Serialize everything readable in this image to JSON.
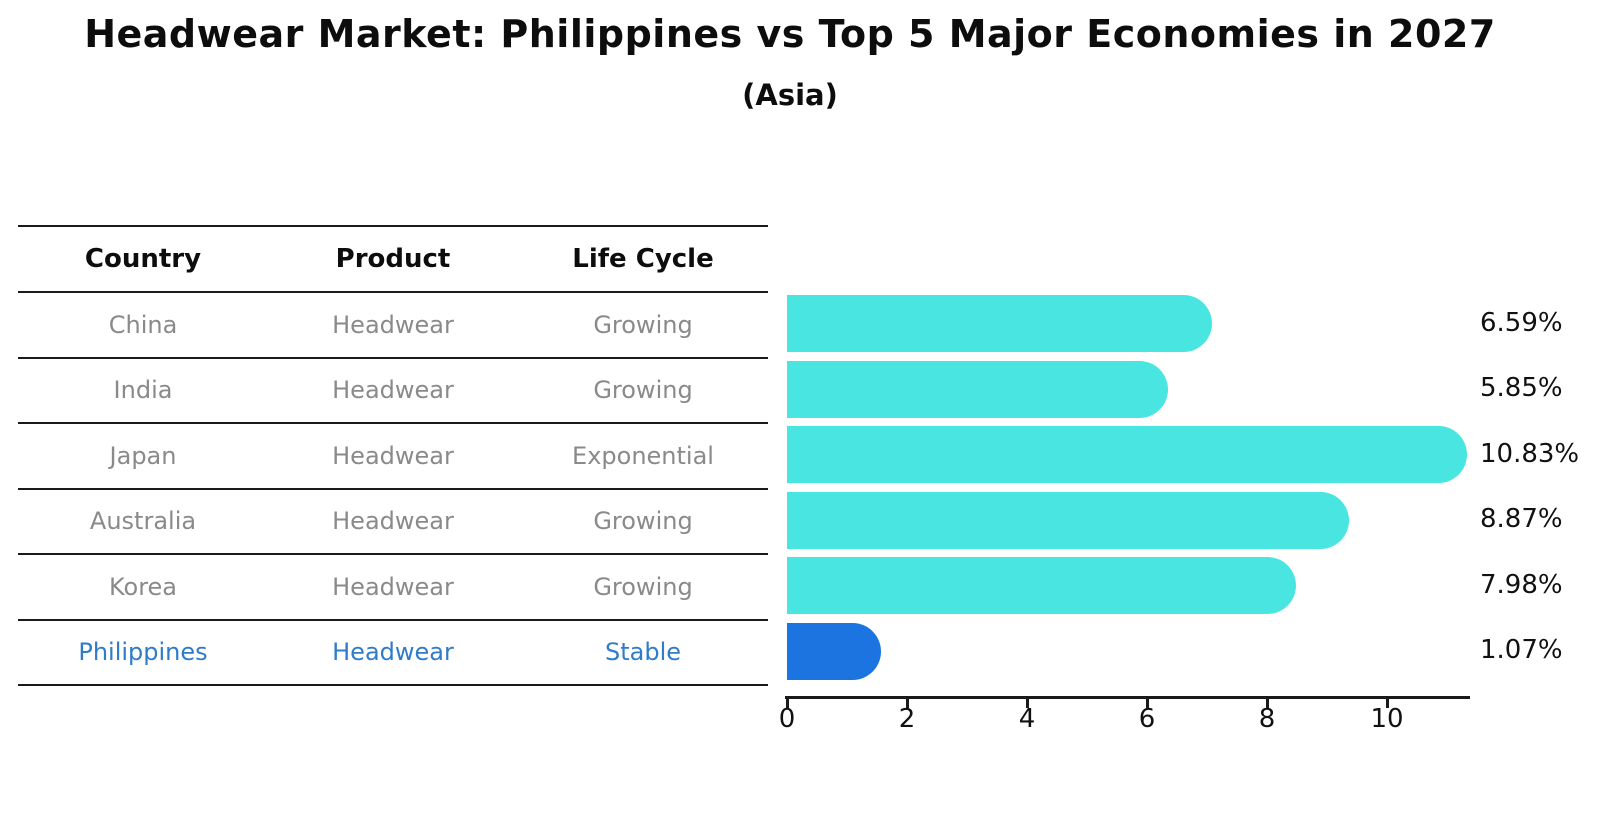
{
  "title": "Headwear Market: Philippines vs Top 5 Major Economies in 2027",
  "subtitle": "(Asia)",
  "table": {
    "headers": [
      "Country",
      "Product",
      "Life Cycle"
    ],
    "rows": [
      {
        "country": "China",
        "product": "Headwear",
        "life_cycle": "Growing",
        "highlight": false
      },
      {
        "country": "India",
        "product": "Headwear",
        "life_cycle": "Growing",
        "highlight": false
      },
      {
        "country": "Japan",
        "product": "Headwear",
        "life_cycle": "Exponential",
        "highlight": false
      },
      {
        "country": "Australia",
        "product": "Headwear",
        "life_cycle": "Growing",
        "highlight": false
      },
      {
        "country": "Korea",
        "product": "Headwear",
        "life_cycle": "Growing",
        "highlight": false
      },
      {
        "country": "Philippines",
        "product": "Headwear",
        "life_cycle": "Stable",
        "highlight": true
      }
    ]
  },
  "chart_data": {
    "type": "bar",
    "orientation": "horizontal",
    "title": "Headwear Market: Philippines vs Top 5 Major Economies in 2027",
    "subtitle": "(Asia)",
    "categories": [
      "China",
      "India",
      "Japan",
      "Australia",
      "Korea",
      "Philippines"
    ],
    "values": [
      6.59,
      5.85,
      10.83,
      8.87,
      7.98,
      1.07
    ],
    "value_labels": [
      "6.59%",
      "5.85%",
      "10.83%",
      "8.87%",
      "7.98%",
      "1.07%"
    ],
    "highlight_category": "Philippines",
    "x_ticks": [
      0,
      2,
      4,
      6,
      8,
      10
    ],
    "xlim": [
      0,
      11.35
    ],
    "grid": false,
    "legend": false,
    "colors": {
      "bar": "#48E5E1",
      "highlight_bar": "#1B74E0",
      "highlight_text": "#2E7CCB",
      "table_text": "#8A8A8A",
      "header_text": "#0D0D0D",
      "axis_text": "#111111",
      "line": "#1A1A1A"
    }
  }
}
